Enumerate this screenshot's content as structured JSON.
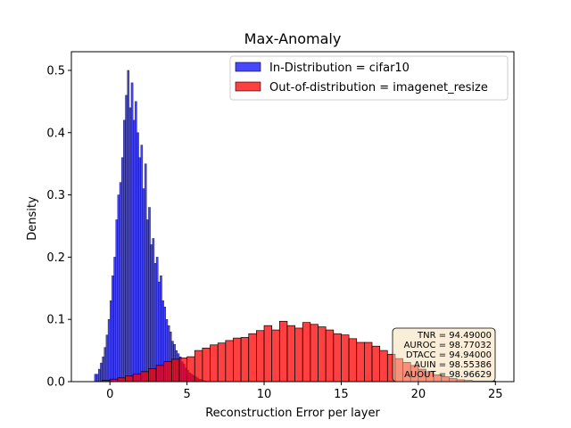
{
  "chart_data": {
    "type": "bar",
    "title": "Max-Anomaly",
    "xlabel": "Reconstruction Error per layer",
    "ylabel": "Density",
    "xlim": [
      -2.5,
      26.2
    ],
    "ylim": [
      0,
      0.53
    ],
    "xticks": [
      "0",
      "5",
      "10",
      "15",
      "20",
      "25"
    ],
    "yticks": [
      "0.0",
      "0.1",
      "0.2",
      "0.3",
      "0.4",
      "0.5"
    ],
    "grid": false,
    "legend_position": "top-right",
    "series": [
      {
        "name": "In-Distribution = cifar10",
        "color": "#0000ff",
        "bin_start": -1.0,
        "bin_width": 0.125,
        "values": [
          0.012,
          0.012,
          0.02,
          0.03,
          0.04,
          0.055,
          0.075,
          0.1,
          0.13,
          0.17,
          0.2,
          0.26,
          0.3,
          0.32,
          0.36,
          0.42,
          0.46,
          0.5,
          0.44,
          0.48,
          0.42,
          0.45,
          0.4,
          0.36,
          0.38,
          0.31,
          0.35,
          0.26,
          0.28,
          0.22,
          0.23,
          0.19,
          0.2,
          0.16,
          0.17,
          0.13,
          0.12,
          0.1,
          0.09,
          0.08,
          0.065,
          0.06,
          0.05,
          0.045,
          0.04,
          0.032,
          0.028,
          0.022,
          0.018,
          0.014,
          0.012,
          0.01,
          0.008,
          0.006,
          0.004,
          0.003,
          0.002,
          0.001
        ]
      },
      {
        "name": "Out-of-distribution = imagenet_resize",
        "color": "#ff0000",
        "bin_start": -0.5,
        "bin_width": 0.5,
        "values": [
          0.002,
          0.004,
          0.006,
          0.009,
          0.012,
          0.016,
          0.021,
          0.026,
          0.032,
          0.036,
          0.038,
          0.04,
          0.05,
          0.054,
          0.059,
          0.062,
          0.066,
          0.07,
          0.071,
          0.077,
          0.082,
          0.09,
          0.083,
          0.097,
          0.09,
          0.086,
          0.095,
          0.092,
          0.088,
          0.083,
          0.077,
          0.075,
          0.069,
          0.063,
          0.063,
          0.057,
          0.05,
          0.044,
          0.037,
          0.031,
          0.026,
          0.02,
          0.016,
          0.011,
          0.008,
          0.005,
          0.003,
          0.002,
          0.001,
          0.001,
          0.001
        ]
      }
    ],
    "metrics": [
      "TNR = 94.49000",
      "AUROC = 98.77032",
      "DTACC = 94.94000",
      "AUIN = 98.55386",
      "AUOUT = 98.96629"
    ]
  }
}
